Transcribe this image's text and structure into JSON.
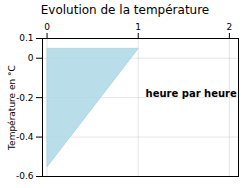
{
  "chart_data": {
    "type": "area",
    "title": "Evolution de la température",
    "ylabel": "Température en °C",
    "annotations": [
      {
        "text": "heure par heure",
        "x": 1.08,
        "y": -0.18
      }
    ],
    "x": [
      0,
      0,
      1,
      0
    ],
    "values": [
      0.05,
      -0.55,
      0.05,
      0.05
    ],
    "color": "#add8e6",
    "xlim": [
      -0.05,
      2.1
    ],
    "xticks": [
      0,
      1,
      2
    ],
    "ylim": [
      -0.6,
      0.1
    ],
    "yticks": [
      -0.6,
      -0.4,
      -0.2,
      0,
      0.1
    ],
    "grid": true
  }
}
